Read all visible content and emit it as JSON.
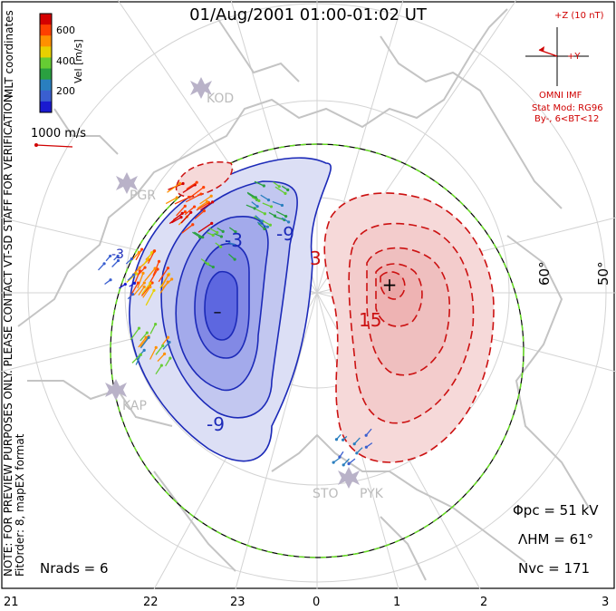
{
  "title": "01/Aug/2001 01:00-01:02 UT",
  "colorbar": {
    "label": "Vel [m/s]",
    "ticks": [
      "600",
      "400",
      "200"
    ],
    "colors": [
      "#d40000",
      "#ff4000",
      "#ff9000",
      "#e8d000",
      "#66cc33",
      "#2aa040",
      "#2a7fbf",
      "#3a5fd0",
      "#1a1ad0"
    ]
  },
  "coords_label": "MLT coordinates",
  "scale_label": "1000 m/s",
  "imf": {
    "bz_label": "+Z (10 nT)",
    "by_label": "+Y",
    "source": "OMNI IMF",
    "model": "Stat Mod: RG96",
    "condition": "By-, 6<BT<12"
  },
  "notes": {
    "preview": "NOTE: FOR PREVIEW PURPOSES ONLY. PLEASE CONTACT VT-SD STAFF FOR VERIFICATION.",
    "fit": "FitOrder: 8, mapEX format"
  },
  "stats": {
    "phi_pc": "Φpc = 51 kV",
    "lambda_hm": "ΛHM = 61°",
    "n_vc": "Nvc = 171",
    "n_rads": "Nrads = 6"
  },
  "latitude_labels": [
    "60°",
    "50°"
  ],
  "mlt_labels": [
    "21",
    "22",
    "23",
    "0",
    "1",
    "2",
    "3"
  ],
  "stations": [
    "KOD",
    "PGR",
    "KAP",
    "STO",
    "PYK"
  ],
  "contour_labels": {
    "neg": [
      "-3",
      "-9",
      "-9",
      "-3"
    ],
    "pos": [
      "3",
      "15"
    ]
  },
  "cells": {
    "neg_fill": "#c8cdf0",
    "neg_core": "#5d67e0",
    "neg_line": "#1c2ab8",
    "pos_fill": "#f6d9d9",
    "pos_core": "#eeb3b3",
    "pos_line": "#cc1111"
  },
  "extrema": {
    "min_marker": "–",
    "max_marker": "+"
  }
}
